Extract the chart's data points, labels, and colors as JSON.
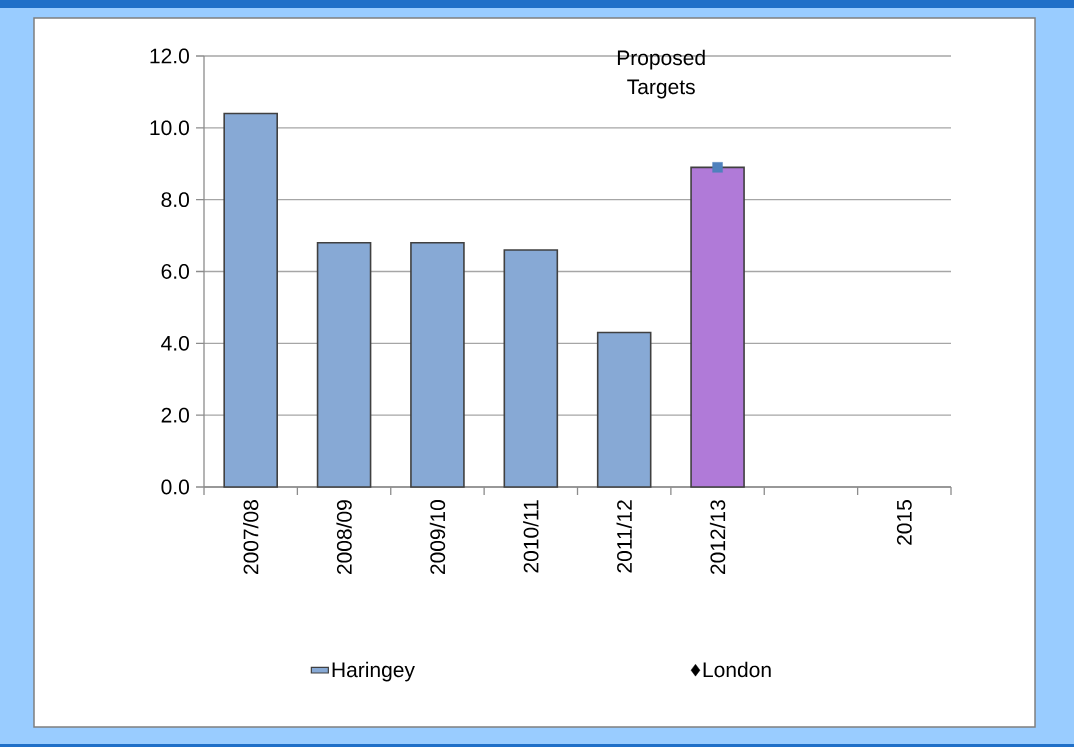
{
  "chart_data": {
    "type": "bar",
    "categories": [
      "2007/08",
      "2008/09",
      "2009/10",
      "2010/11",
      "2011/12",
      "2012/13",
      null,
      "2015"
    ],
    "series": [
      {
        "name": "Haringey",
        "color": "#87a9d5",
        "colors": [
          "#87a9d5",
          "#87a9d5",
          "#87a9d5",
          "#87a9d5",
          "#87a9d5",
          "#b07ad8",
          "#87a9d5",
          "#87a9d5"
        ],
        "values": [
          10.4,
          6.8,
          6.8,
          6.6,
          4.3,
          8.9,
          null,
          null
        ]
      },
      {
        "name": "London",
        "type": "scatter",
        "color": "#000000",
        "marker": "diamond",
        "values": [
          null,
          null,
          null,
          null,
          null,
          null,
          null,
          null
        ]
      },
      {
        "type": "scatter",
        "color": "#4f81bd",
        "marker": "square",
        "values": [
          null,
          null,
          null,
          null,
          null,
          8.9,
          null,
          null
        ]
      }
    ],
    "ylim": [
      0,
      12
    ],
    "yticks": [
      {
        "value": 0,
        "label": "0.0"
      },
      {
        "value": 2,
        "label": "2.0"
      },
      {
        "value": 4,
        "label": "4.0"
      },
      {
        "value": 6,
        "label": "6.0"
      },
      {
        "value": 8,
        "label": "8.0"
      },
      {
        "value": 10,
        "label": "10.0"
      },
      {
        "value": 12,
        "label": "12.0"
      }
    ],
    "grid": "y",
    "legend": "bottom",
    "annotations": [
      "Proposed Targets"
    ]
  }
}
